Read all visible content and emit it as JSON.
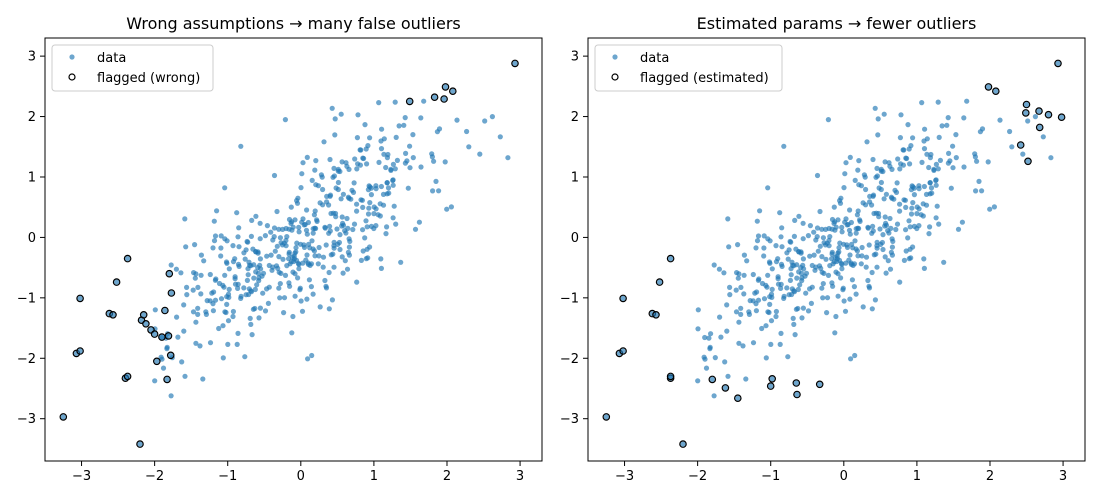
{
  "chart_data": [
    {
      "type": "scatter",
      "title": "Wrong assumptions → many false outliers",
      "xlabel": "",
      "ylabel": "",
      "xlim": [
        -3.5,
        3.3
      ],
      "ylim": [
        -3.7,
        3.3
      ],
      "xticks": [
        -3,
        -2,
        -1,
        0,
        1,
        2,
        3
      ],
      "yticks": [
        -3,
        -2,
        -1,
        0,
        1,
        2,
        3
      ],
      "xtick_labels": [
        "−3",
        "−2",
        "−1",
        "0",
        "1",
        "2",
        "3"
      ],
      "ytick_labels": [
        "−3",
        "−2",
        "−1",
        "0",
        "1",
        "2",
        "3"
      ],
      "grid": false,
      "legend_position": "top-left",
      "series": [
        {
          "name": "data",
          "style": "filled",
          "color": "#1f77b4",
          "n_points": 500,
          "seed": 7
        },
        {
          "name": "flagged (wrong)",
          "style": "hollow",
          "x": [
            -3.25,
            -3.07,
            -3.02,
            -3.02,
            -2.62,
            -2.57,
            -2.52,
            -2.4,
            -2.37,
            -2.37,
            -2.2,
            -2.18,
            -2.15,
            -2.12,
            -2.05,
            -2.0,
            -1.97,
            -1.9,
            -1.86,
            -1.83,
            -1.81,
            -1.8,
            -1.78,
            -1.77,
            1.49,
            1.83,
            1.96,
            1.98,
            2.08,
            2.93
          ],
          "y": [
            -2.97,
            -1.92,
            -1.88,
            -1.01,
            -1.26,
            -1.28,
            -0.74,
            -2.33,
            -2.3,
            -0.35,
            -3.42,
            -1.37,
            -1.28,
            -1.43,
            -1.53,
            -1.6,
            -2.05,
            -1.65,
            -1.21,
            -2.35,
            -1.63,
            -0.6,
            -1.95,
            -0.92,
            2.25,
            2.32,
            2.29,
            2.49,
            2.42,
            2.88
          ]
        }
      ]
    },
    {
      "type": "scatter",
      "title": "Estimated params → fewer outliers",
      "xlabel": "",
      "ylabel": "",
      "xlim": [
        -3.5,
        3.3
      ],
      "ylim": [
        -3.7,
        3.3
      ],
      "xticks": [
        -3,
        -2,
        -1,
        0,
        1,
        2,
        3
      ],
      "yticks": [
        -3,
        -2,
        -1,
        0,
        1,
        2,
        3
      ],
      "xtick_labels": [
        "−3",
        "−2",
        "−1",
        "0",
        "1",
        "2",
        "3"
      ],
      "ytick_labels": [
        "−3",
        "−2",
        "−1",
        "0",
        "1",
        "2",
        "3"
      ],
      "grid": false,
      "legend_position": "top-left",
      "series": [
        {
          "name": "data",
          "style": "filled",
          "color": "#1f77b4",
          "n_points": 500,
          "seed": 7
        },
        {
          "name": "flagged (estimated)",
          "style": "hollow",
          "x": [
            -3.25,
            -3.07,
            -3.02,
            -3.02,
            -2.62,
            -2.57,
            -2.52,
            -2.37,
            -2.37,
            -2.37,
            -2.2,
            -1.8,
            -1.62,
            -1.45,
            -1.0,
            -0.98,
            -0.65,
            -0.64,
            -0.33,
            1.98,
            2.08,
            2.42,
            2.49,
            2.5,
            2.52,
            2.67,
            2.68,
            2.8,
            2.93,
            2.98
          ],
          "y": [
            -2.97,
            -1.92,
            -1.88,
            -1.01,
            -1.26,
            -1.28,
            -0.74,
            -2.33,
            -2.3,
            -0.35,
            -3.42,
            -2.35,
            -2.49,
            -2.66,
            -2.46,
            -2.34,
            -2.41,
            -2.6,
            -2.43,
            2.49,
            2.42,
            1.53,
            2.06,
            2.2,
            1.26,
            2.09,
            1.82,
            2.03,
            2.88,
            1.99
          ]
        }
      ]
    }
  ]
}
